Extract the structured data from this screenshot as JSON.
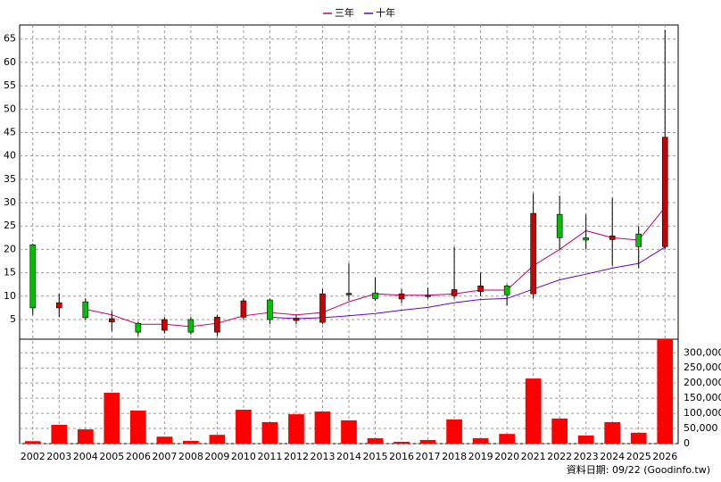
{
  "chart_data": {
    "type": "candlestick",
    "categories": [
      "2002",
      "2003",
      "2004",
      "2005",
      "2006",
      "2007",
      "2008",
      "2009",
      "2010",
      "2011",
      "2012",
      "2013",
      "2014",
      "2015",
      "2016",
      "2017",
      "2018",
      "2019",
      "2020",
      "2021",
      "2022",
      "2023",
      "2024",
      "2025",
      "2026"
    ],
    "open": [
      21,
      7.5,
      8.8,
      4.5,
      4.2,
      2.7,
      5,
      2.3,
      5.5,
      9.2,
      4.8,
      4.4,
      10.3,
      10.7,
      9.4,
      9.9,
      10.1,
      11,
      12.2,
      10.5,
      27.5,
      22.5,
      22.1,
      23.3,
      20.6
    ],
    "close": [
      7.5,
      8.6,
      5.4,
      5.2,
      2.3,
      5,
      2.3,
      5.5,
      9,
      5,
      5.3,
      10.5,
      10.6,
      9.5,
      10.5,
      10.2,
      11.4,
      12.2,
      10.3,
      27.7,
      22.5,
      22,
      22.9,
      20.6,
      44
    ],
    "high": [
      21.2,
      10.5,
      9.5,
      6.8,
      4.5,
      5.5,
      5.5,
      6,
      9.5,
      9.5,
      6,
      11.5,
      17,
      14,
      11.5,
      11.8,
      20.5,
      15,
      12.5,
      32,
      31.5,
      27.5,
      31,
      25,
      67
    ],
    "low": [
      6,
      5.5,
      5,
      2.5,
      1.5,
      2,
      1.8,
      1.5,
      5,
      4,
      4,
      4,
      9,
      9,
      8.5,
      9.5,
      9.5,
      10,
      8,
      9.5,
      20,
      20,
      16.5,
      16,
      20
    ],
    "up_color": "#cc0000",
    "down_color": "#00c000",
    "series": [
      {
        "name": "三年",
        "color": "#cc0066",
        "values": [
          null,
          null,
          7.2,
          6,
          4,
          4,
          3.5,
          4.2,
          5.8,
          6.5,
          6,
          6.5,
          8.8,
          10.5,
          10.2,
          10.2,
          10.5,
          11.3,
          11.3,
          16.5,
          20,
          24,
          22.5,
          22,
          29
        ]
      },
      {
        "name": "十年",
        "color": "#6600cc",
        "values": [
          null,
          null,
          null,
          null,
          null,
          null,
          null,
          null,
          null,
          5.5,
          5.2,
          5.4,
          5.8,
          6.3,
          7,
          7.6,
          8.6,
          9.3,
          9.5,
          11.5,
          13.5,
          14.7,
          16,
          17,
          20.5
        ]
      }
    ],
    "ylim": [
      0.8,
      68
    ],
    "yticks": [
      5,
      10,
      15,
      20,
      25,
      30,
      35,
      40,
      45,
      50,
      55,
      60,
      65
    ],
    "grid": true,
    "volume": {
      "color": "#ff0000",
      "values": [
        8000,
        62000,
        47000,
        168000,
        109000,
        23000,
        9000,
        29000,
        112000,
        71000,
        97000,
        106000,
        77000,
        18000,
        6000,
        12000,
        80000,
        18000,
        32000,
        215000,
        83000,
        27000,
        71000,
        36000,
        347000
      ],
      "ylim": [
        0,
        345000
      ],
      "yticks": [
        0,
        {
          "value": 50000,
          "label": "50,000"
        },
        {
          "value": 100000,
          "label": "100,000"
        },
        {
          "value": 150000,
          "label": "150,000"
        },
        {
          "value": 200000,
          "label": "200,000"
        },
        {
          "value": 250000,
          "label": "250,000"
        },
        {
          "value": 300000,
          "label": "300,000"
        }
      ]
    },
    "footer": "資料日期: 09/22 (Goodinfo.tw)"
  }
}
